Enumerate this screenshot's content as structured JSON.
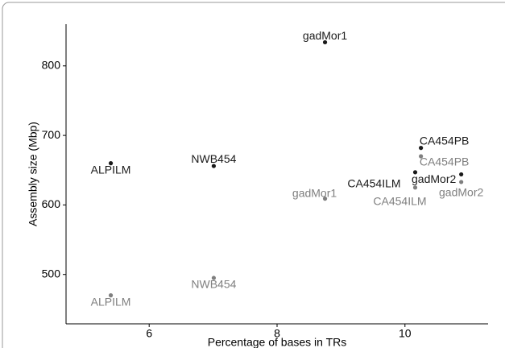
{
  "chart_data": {
    "type": "scatter",
    "xlabel": "Percentage of bases in TRs",
    "ylabel": "Assembly size (Mbp)",
    "xlim": [
      4.7,
      11.3
    ],
    "ylim": [
      429,
      860
    ],
    "xticks": [
      6,
      8,
      10
    ],
    "yticks": [
      500,
      600,
      700,
      800
    ],
    "grid": false,
    "series": [
      {
        "color": "#1a1a1a",
        "labels": [
          "ALPILM",
          "NWB454",
          "gadMor1",
          "CA454PB",
          "CA454ILM",
          "gadMor2"
        ],
        "x": [
          5.4,
          7.01,
          8.75,
          10.25,
          10.16,
          10.88
        ],
        "values": [
          660,
          656,
          834,
          682,
          647,
          644
        ]
      },
      {
        "color": "#7f7f7f",
        "labels": [
          "ALPILM",
          "NWB454",
          "gadMor1",
          "CA454PB",
          "CA454ILM",
          "gadMor2"
        ],
        "x": [
          5.4,
          7.01,
          8.75,
          10.25,
          10.16,
          10.88
        ],
        "values": [
          470,
          495,
          609,
          670,
          625,
          633
        ]
      }
    ]
  }
}
